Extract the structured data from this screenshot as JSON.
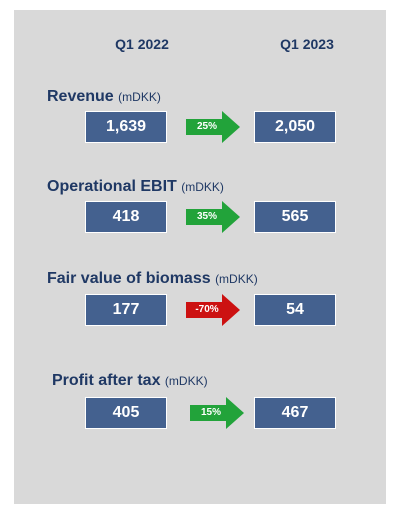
{
  "header": {
    "left": "Q1 2022",
    "right": "Q1 2023"
  },
  "rows": [
    {
      "title": "Revenue",
      "unit": "(mDKK)",
      "left": "1,639",
      "right": "2,050",
      "pct": "25%",
      "arrow_color": "#22a33a"
    },
    {
      "title": "Operational EBIT",
      "unit": "(mDKK)",
      "left": "418",
      "right": "565",
      "pct": "35%",
      "arrow_color": "#22a33a"
    },
    {
      "title": "Fair value of biomass",
      "unit": "(mDKK)",
      "left": "177",
      "right": "54",
      "pct": "-70%",
      "arrow_color": "#cc1111"
    },
    {
      "title": "Profit after tax",
      "unit": "(mDKK)",
      "left": "405",
      "right": "467",
      "pct": "15%",
      "arrow_color": "#22a33a"
    }
  ],
  "colors": {
    "panel": "#d9d9d9",
    "box": "#44618f",
    "title": "#1f3864"
  }
}
